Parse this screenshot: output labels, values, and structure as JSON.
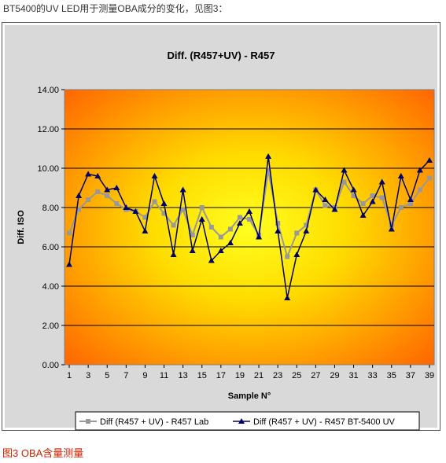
{
  "intro_text": "BT5400的UV LED用于测量OBA成分的变化，见图3：",
  "figure_caption": "图3 OBA含量测量",
  "chart_data": {
    "type": "line",
    "title": "Diff. (R457+UV) - R457",
    "xlabel": "Sample N°",
    "ylabel": "Diff. ISO",
    "x": [
      1,
      2,
      3,
      4,
      5,
      6,
      7,
      8,
      9,
      10,
      11,
      12,
      13,
      14,
      15,
      16,
      17,
      18,
      19,
      20,
      21,
      22,
      23,
      24,
      25,
      26,
      27,
      28,
      29,
      30,
      31,
      32,
      33,
      34,
      35,
      36,
      37,
      38,
      39
    ],
    "x_tick_labels": [
      "1",
      "3",
      "5",
      "7",
      "9",
      "11",
      "13",
      "15",
      "17",
      "19",
      "21",
      "23",
      "25",
      "27",
      "29",
      "31",
      "33",
      "35",
      "37",
      "39"
    ],
    "ylim": [
      0,
      14
    ],
    "y_tick_labels": [
      "0.00",
      "2.00",
      "4.00",
      "6.00",
      "8.00",
      "10.00",
      "12.00",
      "14.00"
    ],
    "grid": true,
    "legend_position": "bottom",
    "series": [
      {
        "name": "Diff (R457 + UV) - R457 Lab",
        "color": "#999999",
        "marker": "square",
        "values": [
          6.7,
          7.9,
          8.4,
          8.8,
          8.6,
          8.2,
          7.9,
          7.8,
          7.5,
          8.3,
          7.7,
          7.1,
          7.9,
          6.6,
          8.0,
          7.0,
          6.5,
          6.9,
          7.5,
          7.4,
          6.6,
          9.9,
          7.2,
          5.5,
          6.7,
          7.1,
          8.9,
          8.1,
          8.0,
          9.3,
          8.6,
          8.2,
          8.6,
          8.5,
          7.1,
          8.0,
          8.2,
          8.9,
          9.5
        ]
      },
      {
        "name": "Diff (R457 + UV) - R457 BT-5400 UV",
        "color": "#000066",
        "marker": "triangle",
        "values": [
          5.1,
          8.6,
          9.7,
          9.6,
          8.9,
          9.0,
          8.0,
          7.8,
          6.8,
          9.6,
          8.2,
          5.6,
          8.9,
          5.8,
          7.4,
          5.3,
          5.8,
          6.2,
          7.2,
          7.8,
          6.5,
          10.6,
          6.8,
          3.4,
          5.6,
          6.8,
          8.9,
          8.4,
          7.9,
          9.9,
          8.9,
          7.6,
          8.3,
          9.3,
          6.9,
          9.6,
          8.4,
          9.9,
          10.4
        ]
      }
    ]
  }
}
